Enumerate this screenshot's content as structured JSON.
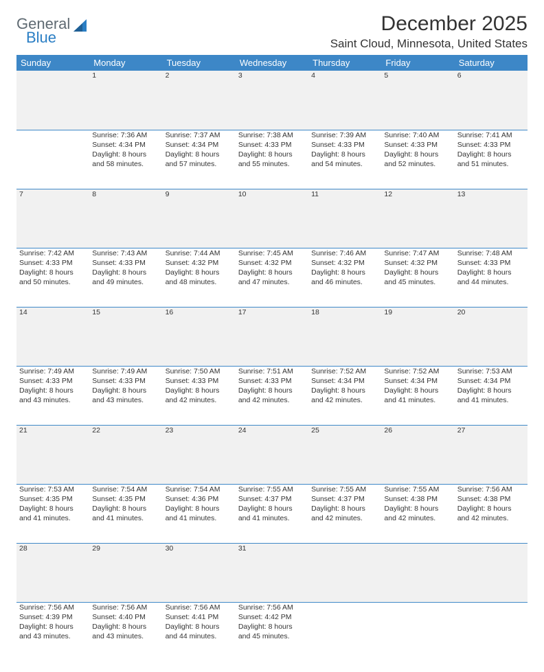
{
  "logo": {
    "top": "General",
    "bottom": "Blue",
    "shape_color": "#2a7ec4",
    "gray": "#5f6a72"
  },
  "title": "December 2025",
  "location": "Saint Cloud, Minnesota, United States",
  "header_bg": "#3d87c7",
  "daynum_bg": "#f1f1f1",
  "border_color": "#3d87c7",
  "weekdays": [
    "Sunday",
    "Monday",
    "Tuesday",
    "Wednesday",
    "Thursday",
    "Friday",
    "Saturday"
  ],
  "weeks": [
    {
      "nums": [
        "",
        "1",
        "2",
        "3",
        "4",
        "5",
        "6"
      ],
      "cells": [
        null,
        {
          "sr": "Sunrise: 7:36 AM",
          "ss": "Sunset: 4:34 PM",
          "d1": "Daylight: 8 hours",
          "d2": "and 58 minutes."
        },
        {
          "sr": "Sunrise: 7:37 AM",
          "ss": "Sunset: 4:34 PM",
          "d1": "Daylight: 8 hours",
          "d2": "and 57 minutes."
        },
        {
          "sr": "Sunrise: 7:38 AM",
          "ss": "Sunset: 4:33 PM",
          "d1": "Daylight: 8 hours",
          "d2": "and 55 minutes."
        },
        {
          "sr": "Sunrise: 7:39 AM",
          "ss": "Sunset: 4:33 PM",
          "d1": "Daylight: 8 hours",
          "d2": "and 54 minutes."
        },
        {
          "sr": "Sunrise: 7:40 AM",
          "ss": "Sunset: 4:33 PM",
          "d1": "Daylight: 8 hours",
          "d2": "and 52 minutes."
        },
        {
          "sr": "Sunrise: 7:41 AM",
          "ss": "Sunset: 4:33 PM",
          "d1": "Daylight: 8 hours",
          "d2": "and 51 minutes."
        }
      ]
    },
    {
      "nums": [
        "7",
        "8",
        "9",
        "10",
        "11",
        "12",
        "13"
      ],
      "cells": [
        {
          "sr": "Sunrise: 7:42 AM",
          "ss": "Sunset: 4:33 PM",
          "d1": "Daylight: 8 hours",
          "d2": "and 50 minutes."
        },
        {
          "sr": "Sunrise: 7:43 AM",
          "ss": "Sunset: 4:33 PM",
          "d1": "Daylight: 8 hours",
          "d2": "and 49 minutes."
        },
        {
          "sr": "Sunrise: 7:44 AM",
          "ss": "Sunset: 4:32 PM",
          "d1": "Daylight: 8 hours",
          "d2": "and 48 minutes."
        },
        {
          "sr": "Sunrise: 7:45 AM",
          "ss": "Sunset: 4:32 PM",
          "d1": "Daylight: 8 hours",
          "d2": "and 47 minutes."
        },
        {
          "sr": "Sunrise: 7:46 AM",
          "ss": "Sunset: 4:32 PM",
          "d1": "Daylight: 8 hours",
          "d2": "and 46 minutes."
        },
        {
          "sr": "Sunrise: 7:47 AM",
          "ss": "Sunset: 4:32 PM",
          "d1": "Daylight: 8 hours",
          "d2": "and 45 minutes."
        },
        {
          "sr": "Sunrise: 7:48 AM",
          "ss": "Sunset: 4:33 PM",
          "d1": "Daylight: 8 hours",
          "d2": "and 44 minutes."
        }
      ]
    },
    {
      "nums": [
        "14",
        "15",
        "16",
        "17",
        "18",
        "19",
        "20"
      ],
      "cells": [
        {
          "sr": "Sunrise: 7:49 AM",
          "ss": "Sunset: 4:33 PM",
          "d1": "Daylight: 8 hours",
          "d2": "and 43 minutes."
        },
        {
          "sr": "Sunrise: 7:49 AM",
          "ss": "Sunset: 4:33 PM",
          "d1": "Daylight: 8 hours",
          "d2": "and 43 minutes."
        },
        {
          "sr": "Sunrise: 7:50 AM",
          "ss": "Sunset: 4:33 PM",
          "d1": "Daylight: 8 hours",
          "d2": "and 42 minutes."
        },
        {
          "sr": "Sunrise: 7:51 AM",
          "ss": "Sunset: 4:33 PM",
          "d1": "Daylight: 8 hours",
          "d2": "and 42 minutes."
        },
        {
          "sr": "Sunrise: 7:52 AM",
          "ss": "Sunset: 4:34 PM",
          "d1": "Daylight: 8 hours",
          "d2": "and 42 minutes."
        },
        {
          "sr": "Sunrise: 7:52 AM",
          "ss": "Sunset: 4:34 PM",
          "d1": "Daylight: 8 hours",
          "d2": "and 41 minutes."
        },
        {
          "sr": "Sunrise: 7:53 AM",
          "ss": "Sunset: 4:34 PM",
          "d1": "Daylight: 8 hours",
          "d2": "and 41 minutes."
        }
      ]
    },
    {
      "nums": [
        "21",
        "22",
        "23",
        "24",
        "25",
        "26",
        "27"
      ],
      "cells": [
        {
          "sr": "Sunrise: 7:53 AM",
          "ss": "Sunset: 4:35 PM",
          "d1": "Daylight: 8 hours",
          "d2": "and 41 minutes."
        },
        {
          "sr": "Sunrise: 7:54 AM",
          "ss": "Sunset: 4:35 PM",
          "d1": "Daylight: 8 hours",
          "d2": "and 41 minutes."
        },
        {
          "sr": "Sunrise: 7:54 AM",
          "ss": "Sunset: 4:36 PM",
          "d1": "Daylight: 8 hours",
          "d2": "and 41 minutes."
        },
        {
          "sr": "Sunrise: 7:55 AM",
          "ss": "Sunset: 4:37 PM",
          "d1": "Daylight: 8 hours",
          "d2": "and 41 minutes."
        },
        {
          "sr": "Sunrise: 7:55 AM",
          "ss": "Sunset: 4:37 PM",
          "d1": "Daylight: 8 hours",
          "d2": "and 42 minutes."
        },
        {
          "sr": "Sunrise: 7:55 AM",
          "ss": "Sunset: 4:38 PM",
          "d1": "Daylight: 8 hours",
          "d2": "and 42 minutes."
        },
        {
          "sr": "Sunrise: 7:56 AM",
          "ss": "Sunset: 4:38 PM",
          "d1": "Daylight: 8 hours",
          "d2": "and 42 minutes."
        }
      ]
    },
    {
      "nums": [
        "28",
        "29",
        "30",
        "31",
        "",
        "",
        ""
      ],
      "cells": [
        {
          "sr": "Sunrise: 7:56 AM",
          "ss": "Sunset: 4:39 PM",
          "d1": "Daylight: 8 hours",
          "d2": "and 43 minutes."
        },
        {
          "sr": "Sunrise: 7:56 AM",
          "ss": "Sunset: 4:40 PM",
          "d1": "Daylight: 8 hours",
          "d2": "and 43 minutes."
        },
        {
          "sr": "Sunrise: 7:56 AM",
          "ss": "Sunset: 4:41 PM",
          "d1": "Daylight: 8 hours",
          "d2": "and 44 minutes."
        },
        {
          "sr": "Sunrise: 7:56 AM",
          "ss": "Sunset: 4:42 PM",
          "d1": "Daylight: 8 hours",
          "d2": "and 45 minutes."
        },
        null,
        null,
        null
      ]
    }
  ]
}
